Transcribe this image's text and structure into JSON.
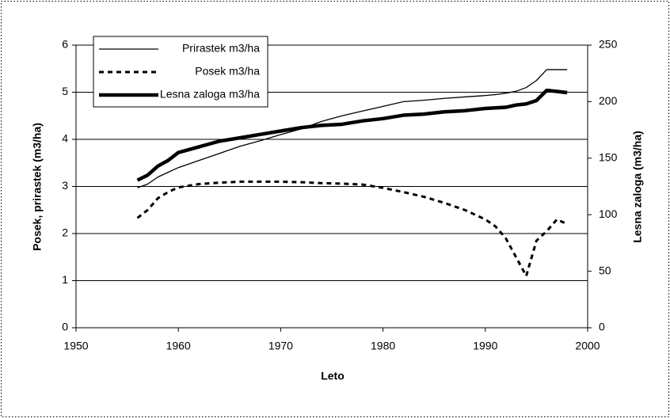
{
  "chart_data": {
    "type": "line",
    "x_label": "Leto",
    "y_label": "Posek, prirastek (m3/ha)",
    "y2_label": "Lesna zaloga (m3/ha)",
    "x": [
      1956,
      1957,
      1958,
      1959,
      1960,
      1962,
      1964,
      1966,
      1968,
      1970,
      1972,
      1974,
      1976,
      1978,
      1980,
      1982,
      1984,
      1986,
      1988,
      1990,
      1991,
      1992,
      1993,
      1994,
      1995,
      1996,
      1997,
      1998
    ],
    "series": [
      {
        "name": "Prirastek m3/ha",
        "color": "#000000",
        "line_width": 1.3,
        "style": "solid",
        "values": [
          2.97,
          3.05,
          3.2,
          3.3,
          3.4,
          3.55,
          3.7,
          3.85,
          3.97,
          4.1,
          4.22,
          4.38,
          4.5,
          4.6,
          4.7,
          4.8,
          4.83,
          4.87,
          4.9,
          4.93,
          4.95,
          4.98,
          5.02,
          5.1,
          5.25,
          5.48,
          5.48,
          5.48
        ]
      },
      {
        "name": "Posek m3/ha",
        "color": "#000000",
        "line_width": 3,
        "style": "dashed",
        "values": [
          2.33,
          2.5,
          2.75,
          2.88,
          2.98,
          3.05,
          3.08,
          3.1,
          3.1,
          3.1,
          3.09,
          3.07,
          3.06,
          3.04,
          2.97,
          2.88,
          2.78,
          2.65,
          2.5,
          2.3,
          2.15,
          1.9,
          1.5,
          1.1,
          1.85,
          2.05,
          2.3,
          2.2
        ]
      },
      {
        "name": "Lesna zaloga m3/ha",
        "color": "#000000",
        "line_width": 4.5,
        "style": "solid",
        "axis": "y2",
        "values": [
          130.5,
          135,
          143,
          148,
          155,
          160,
          165,
          168,
          171,
          174,
          177,
          179,
          180,
          183,
          185,
          188,
          189,
          191,
          192,
          194,
          194.5,
          195,
          197,
          198,
          201,
          210,
          209,
          208
        ]
      }
    ],
    "xlim": [
      1950,
      2000
    ],
    "xticks": [
      1950,
      1960,
      1970,
      1980,
      1990,
      2000
    ],
    "ylim": [
      0,
      6
    ],
    "yticks": [
      0,
      1,
      2,
      3,
      4,
      5,
      6
    ],
    "y2lim": [
      0,
      250
    ],
    "y2ticks": [
      0,
      50,
      100,
      150,
      200,
      250
    ],
    "grid": true,
    "legend": "top-left"
  }
}
